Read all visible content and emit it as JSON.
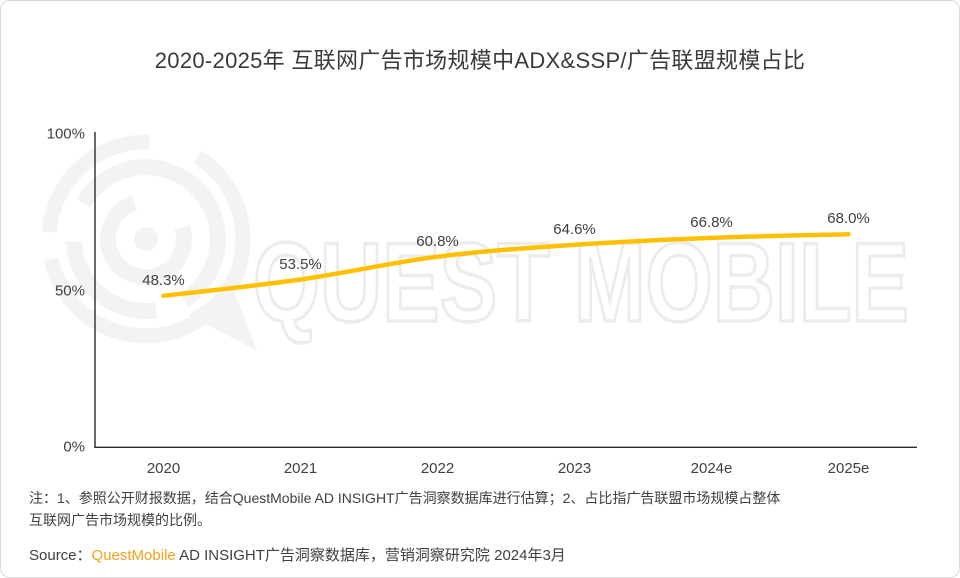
{
  "title": "2020-2025年 互联网广告市场规模中ADX&SSP/广告联盟规模占比",
  "watermark": {
    "text": "QUEST MOBILE"
  },
  "chart_data": {
    "type": "line",
    "title": "2020-2025年 互联网广告市场规模中ADX&SSP/广告联盟规模占比",
    "categories": [
      "2020",
      "2021",
      "2022",
      "2023",
      "2024e",
      "2025e"
    ],
    "values": [
      48.3,
      53.5,
      60.8,
      64.6,
      66.8,
      68.0
    ],
    "labels": [
      "48.3%",
      "53.5%",
      "60.8%",
      "64.6%",
      "66.8%",
      "68.0%"
    ],
    "xlabel": "",
    "ylabel": "",
    "ylim": [
      0,
      100
    ],
    "yticks": [
      {
        "value": 0,
        "label": "0%"
      },
      {
        "value": 50,
        "label": "50%"
      },
      {
        "value": 100,
        "label": "100%"
      }
    ],
    "grid": false,
    "legend": false,
    "line_color": "#FFC000"
  },
  "notes": {
    "lines": [
      "注：1、参照公开财报数据，结合QuestMobile AD INSIGHT广告洞察数据库进行估算；2、占比指广告联盟市场规模占整体",
      "互联网广告市场规模的比例。"
    ]
  },
  "source": {
    "prefix": "Source：",
    "brand": "QuestMobile",
    "rest": " AD INSIGHT广告洞察数据库，营销洞察研究院 2024年3月"
  },
  "colors": {
    "accent_line": "#FFC000",
    "brand_orange": "#F7A11D",
    "text": "#404040",
    "axis": "#2B2B2B",
    "watermark_fill": "#F3F3F3",
    "watermark_outline": "#ECECEC",
    "border": "#D9D9D9",
    "background": "#FFFFFF"
  }
}
